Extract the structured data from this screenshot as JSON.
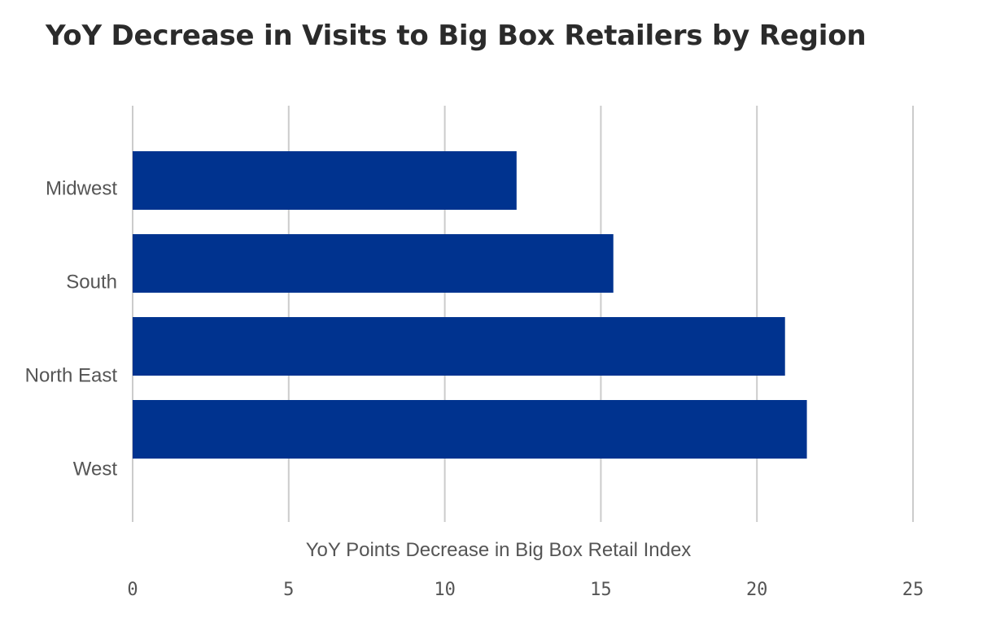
{
  "chart_data": {
    "type": "bar",
    "orientation": "horizontal",
    "title": "YoY Decrease in Visits to Big Box Retailers by Region",
    "xlabel": "YoY Points Decrease in Big Box Retail Index",
    "ylabel": "",
    "categories": [
      "Midwest",
      "South",
      "North East",
      "West"
    ],
    "values": [
      12.3,
      15.4,
      20.9,
      21.6
    ],
    "xlim": [
      0,
      25
    ],
    "x_ticks": [
      0,
      5,
      10,
      15,
      20,
      25
    ],
    "grid": true,
    "legend": "none",
    "bar_color": "#00338f"
  }
}
